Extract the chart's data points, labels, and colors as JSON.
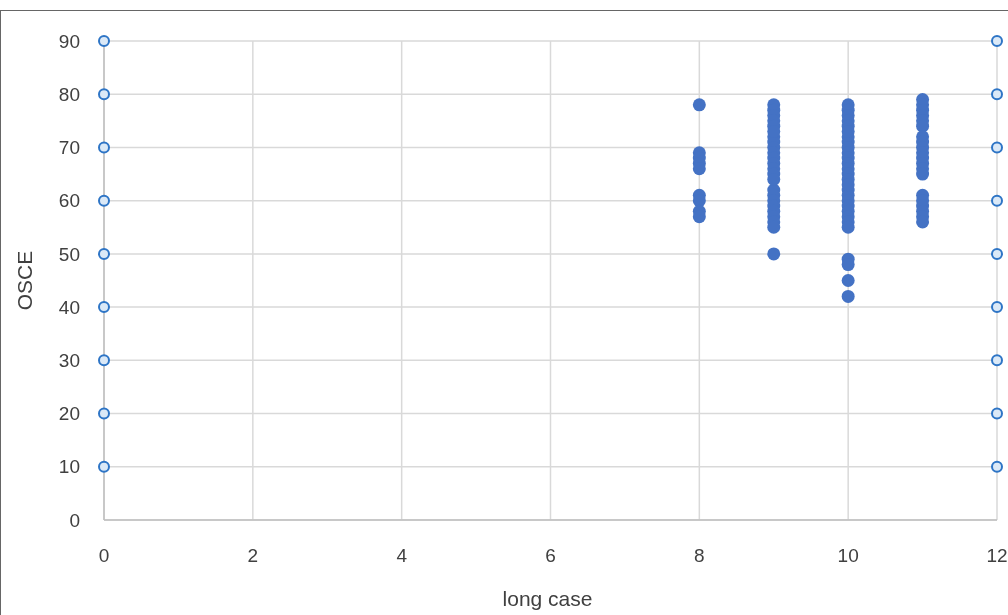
{
  "chart_data": {
    "type": "scatter",
    "xlabel": "long case",
    "ylabel": "OSCE",
    "xlim": [
      0,
      12
    ],
    "xticks": [
      0,
      2,
      4,
      6,
      8,
      10,
      12
    ],
    "ylim": [
      0,
      90
    ],
    "yticks": [
      0,
      10,
      20,
      30,
      40,
      50,
      60,
      70,
      80,
      90
    ],
    "grid": true,
    "marker": "circle",
    "series": [
      {
        "color": "#4472c4",
        "x": [
          8,
          8,
          8,
          8,
          8,
          8,
          8,
          8,
          8,
          9,
          9,
          9,
          9,
          9,
          9,
          9,
          9,
          9,
          9,
          9,
          9,
          9,
          9,
          9,
          9,
          9,
          9,
          9,
          9,
          9,
          9,
          9,
          9,
          10,
          10,
          10,
          10,
          10,
          10,
          10,
          10,
          10,
          10,
          10,
          10,
          10,
          10,
          10,
          10,
          10,
          10,
          10,
          10,
          10,
          10,
          10,
          10,
          10,
          10,
          10,
          10,
          11,
          11,
          11,
          11,
          11,
          11,
          11,
          11,
          11,
          11,
          11,
          11,
          11,
          11,
          11,
          11,
          11,
          11,
          11,
          11
        ],
        "values": [
          78,
          69,
          68,
          67,
          66,
          61,
          60,
          58,
          57,
          78,
          77,
          76,
          75,
          72,
          71,
          70,
          69,
          68,
          67,
          66,
          65,
          62,
          61,
          60,
          59,
          58,
          57,
          56,
          55,
          50,
          74,
          73,
          64,
          78,
          77,
          76,
          75,
          74,
          72,
          71,
          70,
          69,
          68,
          67,
          66,
          65,
          62,
          61,
          60,
          59,
          58,
          57,
          56,
          55,
          49,
          48,
          45,
          42,
          73,
          64,
          63,
          79,
          78,
          77,
          76,
          75,
          74,
          72,
          71,
          70,
          69,
          68,
          67,
          66,
          65,
          61,
          60,
          59,
          58,
          57,
          56
        ]
      }
    ]
  }
}
